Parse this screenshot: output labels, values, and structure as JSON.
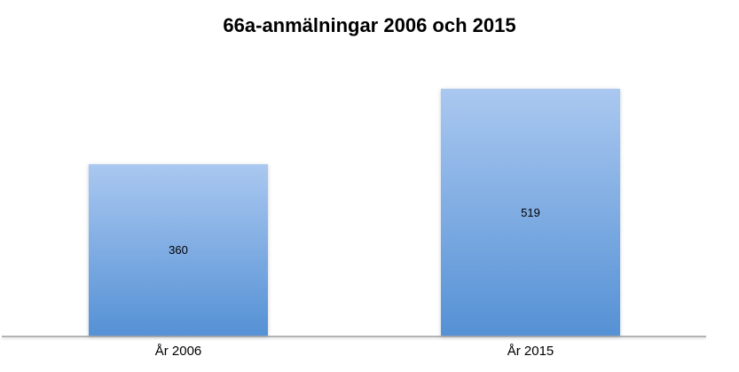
{
  "chart_data": {
    "type": "bar",
    "title": "66a-anmälningar 2006 och 2015",
    "categories": [
      "År 2006",
      "År 2015"
    ],
    "values": [
      360,
      519
    ],
    "data_labels": [
      "360",
      "519"
    ],
    "xlabel": "",
    "ylabel": "",
    "ylim": [
      0,
      560
    ],
    "grid": false,
    "legend": false,
    "data_label_position": "center",
    "colors": {
      "bar_gradient_top": "#aac8f0",
      "bar_gradient_bottom": "#5591d5",
      "axis_line": "#b3b3b3",
      "text": "#000000",
      "background": "#ffffff"
    }
  }
}
